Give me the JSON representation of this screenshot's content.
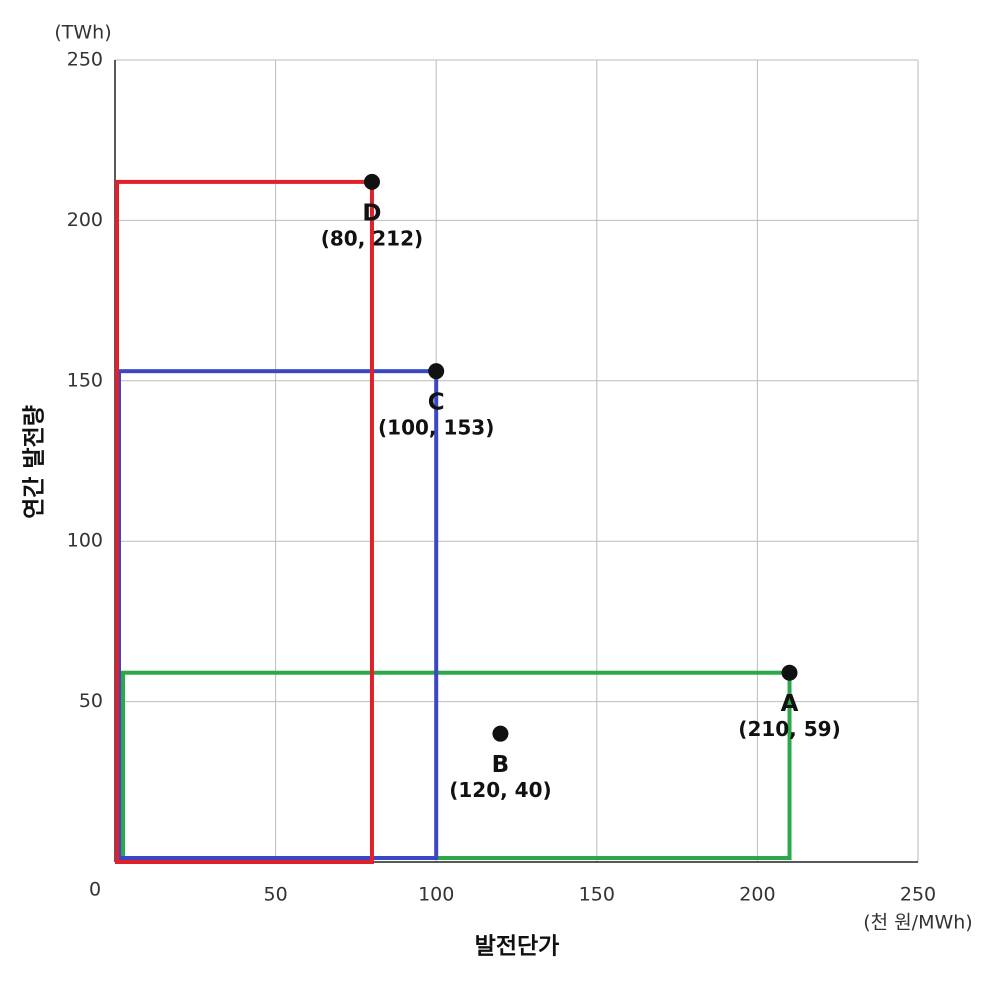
{
  "chart_data": {
    "type": "scatter",
    "y_unit": "(TWh)",
    "x_unit": "(천 원/MWh)",
    "x_label": "발전단가",
    "y_label": "연간 발전량",
    "xlim": [
      0,
      250
    ],
    "ylim": [
      0,
      250
    ],
    "xticks": [
      0,
      50,
      100,
      150,
      200,
      250
    ],
    "yticks": [
      50,
      100,
      150,
      200,
      250
    ],
    "grid": true,
    "points": [
      {
        "name": "A",
        "x": 210,
        "y": 59,
        "label": "(210, 59)",
        "rect_color": "#2aa84a"
      },
      {
        "name": "B",
        "x": 120,
        "y": 40,
        "label": "(120, 40)"
      },
      {
        "name": "C",
        "x": 100,
        "y": 153,
        "label": "(100, 153)",
        "rect_color": "#3a47c4"
      },
      {
        "name": "D",
        "x": 80,
        "y": 212,
        "label": "(80, 212)",
        "rect_color": "#e0202a"
      }
    ],
    "point_color": "#111111"
  }
}
